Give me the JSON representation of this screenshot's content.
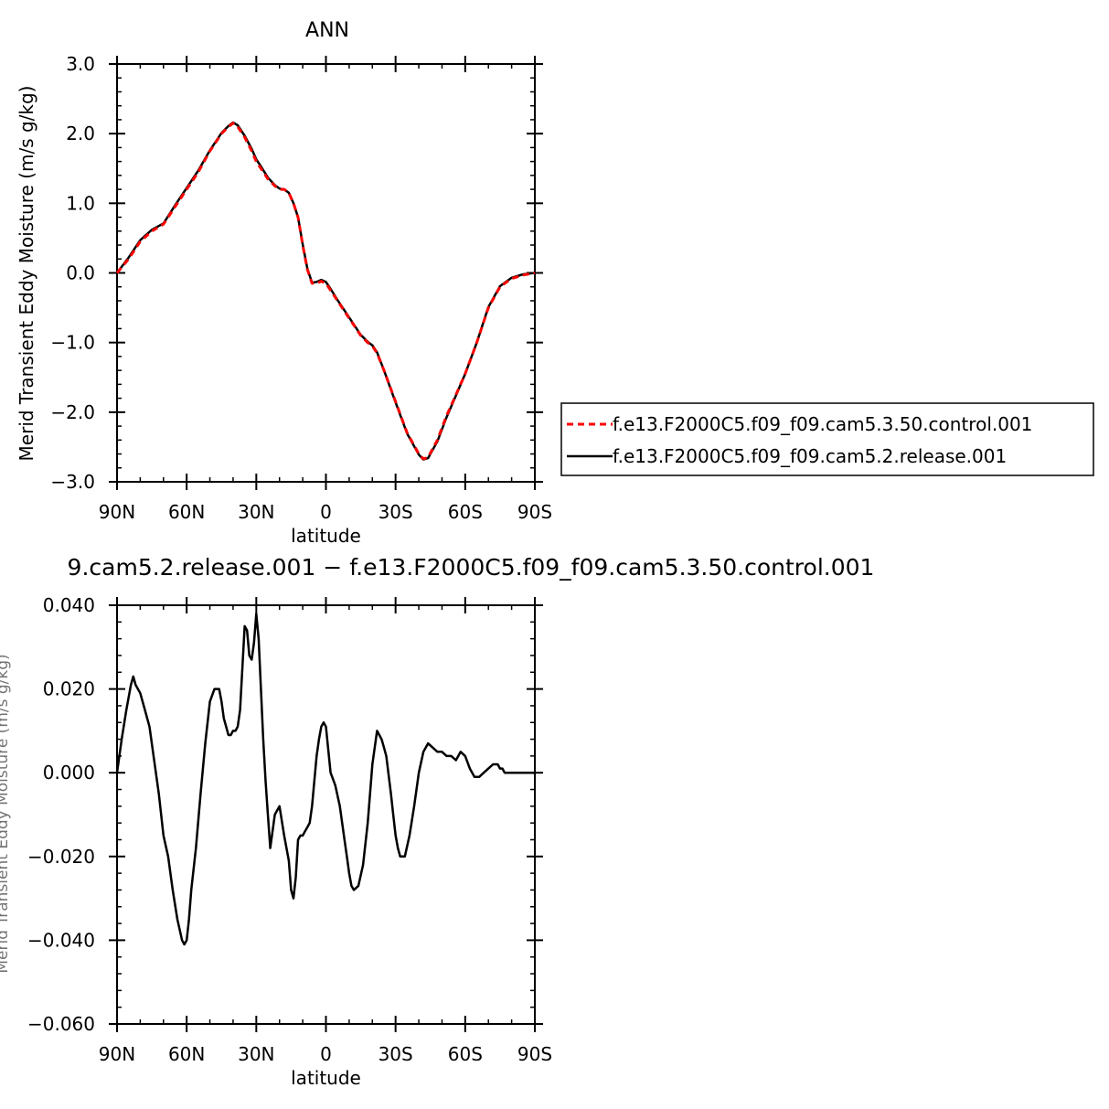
{
  "chart_data": [
    {
      "type": "line",
      "title": "ANN",
      "xlabel": "latitude",
      "ylabel": "Merid Transient Eddy Moisture (m/s g/kg)",
      "xlim": [
        90,
        -90
      ],
      "ylim": [
        -3.0,
        3.0
      ],
      "xticks": [
        90,
        60,
        30,
        0,
        -30,
        -60,
        -90
      ],
      "xtick_labels": [
        "90N",
        "60N",
        "30N",
        "0",
        "30S",
        "60S",
        "90S"
      ],
      "yticks": [
        -3.0,
        -2.0,
        -1.0,
        0.0,
        1.0,
        2.0,
        3.0
      ],
      "ytick_labels": [
        "−3.0",
        "−2.0",
        "−1.0",
        "0.0",
        "1.0",
        "2.0",
        "3.0"
      ],
      "grid": false,
      "legend_position": "right",
      "series": [
        {
          "name": "f.e13.F2000C5.f09_f09.cam5.3.50.control.001",
          "color": "#ff0000",
          "dash": "dashed",
          "x": [
            90,
            85,
            80,
            75,
            70,
            65,
            60,
            55,
            50,
            45,
            42,
            40,
            38,
            35,
            32,
            30,
            28,
            25,
            22,
            20,
            18,
            16,
            14,
            12,
            10,
            8,
            6,
            4,
            2,
            0,
            -2,
            -5,
            -8,
            -10,
            -12,
            -15,
            -18,
            -20,
            -22,
            -25,
            -30,
            -35,
            -40,
            -42,
            -44,
            -48,
            -52,
            -56,
            -60,
            -65,
            -70,
            -75,
            -80,
            -85,
            -90
          ],
          "y": [
            0.0,
            0.2,
            0.45,
            0.6,
            0.7,
            0.95,
            1.2,
            1.45,
            1.75,
            2.0,
            2.1,
            2.15,
            2.1,
            1.95,
            1.75,
            1.6,
            1.5,
            1.35,
            1.25,
            1.2,
            1.2,
            1.15,
            1.0,
            0.8,
            0.4,
            0.05,
            -0.15,
            -0.15,
            -0.12,
            -0.15,
            -0.25,
            -0.4,
            -0.55,
            -0.65,
            -0.75,
            -0.9,
            -1.0,
            -1.05,
            -1.15,
            -1.4,
            -1.85,
            -2.3,
            -2.6,
            -2.67,
            -2.65,
            -2.4,
            -2.05,
            -1.75,
            -1.45,
            -1.0,
            -0.5,
            -0.2,
            -0.08,
            -0.03,
            0.0
          ]
        },
        {
          "name": "f.e13.F2000C5.f09_f09.cam5.2.release.001",
          "color": "#000000",
          "dash": "solid",
          "x": [
            90,
            85,
            80,
            75,
            70,
            65,
            60,
            55,
            50,
            45,
            42,
            40,
            38,
            35,
            32,
            30,
            28,
            25,
            22,
            20,
            18,
            16,
            14,
            12,
            10,
            8,
            6,
            4,
            2,
            0,
            -2,
            -5,
            -8,
            -10,
            -12,
            -15,
            -18,
            -20,
            -22,
            -25,
            -30,
            -35,
            -40,
            -42,
            -44,
            -48,
            -52,
            -56,
            -60,
            -65,
            -70,
            -75,
            -80,
            -85,
            -90
          ],
          "y": [
            0.0,
            0.22,
            0.47,
            0.62,
            0.71,
            0.97,
            1.22,
            1.47,
            1.76,
            2.01,
            2.11,
            2.16,
            2.12,
            1.97,
            1.78,
            1.63,
            1.53,
            1.37,
            1.26,
            1.21,
            1.2,
            1.15,
            1.0,
            0.8,
            0.41,
            0.06,
            -0.14,
            -0.13,
            -0.1,
            -0.13,
            -0.23,
            -0.39,
            -0.54,
            -0.64,
            -0.74,
            -0.89,
            -0.99,
            -1.04,
            -1.14,
            -1.4,
            -1.86,
            -2.31,
            -2.61,
            -2.68,
            -2.66,
            -2.42,
            -2.07,
            -1.76,
            -1.45,
            -1.0,
            -0.49,
            -0.19,
            -0.07,
            -0.02,
            0.0
          ]
        }
      ]
    },
    {
      "type": "line",
      "title": "9.cam5.2.release.001 − f.e13.F2000C5.f09_f09.cam5.3.50.control.001",
      "xlabel": "latitude",
      "ylabel": "Merid Transient Eddy Moisture (m/s g/kg)",
      "xlim": [
        90,
        -90
      ],
      "ylim": [
        -0.06,
        0.04
      ],
      "xticks": [
        90,
        60,
        30,
        0,
        -30,
        -60,
        -90
      ],
      "xtick_labels": [
        "90N",
        "60N",
        "30N",
        "0",
        "30S",
        "60S",
        "90S"
      ],
      "yticks": [
        -0.06,
        -0.04,
        -0.02,
        0.0,
        0.02,
        0.04
      ],
      "ytick_labels": [
        "−0.060",
        "−0.040",
        "−0.020",
        "0.000",
        "0.020",
        "0.040"
      ],
      "grid": false,
      "series": [
        {
          "color": "#000000",
          "dash": "solid",
          "x": [
            90,
            88,
            86,
            84,
            83,
            82,
            80,
            78,
            76,
            74,
            72,
            70,
            68,
            66,
            64,
            62,
            61,
            60,
            59,
            58,
            56,
            54,
            52,
            50,
            48,
            46,
            45,
            44,
            42,
            41,
            40,
            39,
            38,
            37,
            36,
            35,
            34,
            33,
            32,
            31,
            30,
            29,
            28,
            27,
            26,
            25,
            24,
            22,
            20,
            18,
            16,
            15,
            14,
            13,
            12,
            11,
            10,
            9,
            8,
            7,
            6,
            5,
            4,
            3,
            2,
            1,
            0,
            -2,
            -4,
            -6,
            -8,
            -9,
            -10,
            -11,
            -12,
            -14,
            -16,
            -18,
            -20,
            -22,
            -24,
            -25,
            -26,
            -28,
            -29,
            -30,
            -31,
            -32,
            -34,
            -36,
            -38,
            -40,
            -42,
            -44,
            -46,
            -48,
            -50,
            -52,
            -54,
            -56,
            -58,
            -60,
            -62,
            -64,
            -66,
            -68,
            -70,
            -72,
            -74,
            -75,
            -76,
            -77,
            -78,
            -79,
            -80,
            -81,
            -82,
            -83,
            -84,
            -85,
            -86,
            -87,
            -88,
            -89,
            -90
          ],
          "y": [
            0.0,
            0.008,
            0.015,
            0.021,
            0.023,
            0.021,
            0.019,
            0.015,
            0.011,
            0.003,
            -0.005,
            -0.015,
            -0.02,
            -0.028,
            -0.035,
            -0.04,
            -0.041,
            -0.04,
            -0.035,
            -0.028,
            -0.018,
            -0.005,
            0.007,
            0.017,
            0.02,
            0.02,
            0.017,
            0.013,
            0.009,
            0.009,
            0.01,
            0.01,
            0.011,
            0.015,
            0.025,
            0.035,
            0.034,
            0.028,
            0.027,
            0.031,
            0.038,
            0.032,
            0.02,
            0.008,
            -0.002,
            -0.01,
            -0.018,
            -0.01,
            -0.008,
            -0.015,
            -0.021,
            -0.028,
            -0.03,
            -0.025,
            -0.016,
            -0.015,
            -0.015,
            -0.014,
            -0.013,
            -0.012,
            -0.008,
            -0.002,
            0.004,
            0.008,
            0.011,
            0.012,
            0.011,
            0.0,
            -0.003,
            -0.008,
            -0.016,
            -0.02,
            -0.024,
            -0.027,
            -0.028,
            -0.027,
            -0.022,
            -0.012,
            0.002,
            0.01,
            0.008,
            0.006,
            0.004,
            -0.005,
            -0.01,
            -0.015,
            -0.018,
            -0.02,
            -0.02,
            -0.015,
            -0.008,
            0.0,
            0.005,
            0.007,
            0.006,
            0.005,
            0.005,
            0.004,
            0.004,
            0.003,
            0.005,
            0.004,
            0.001,
            -0.001,
            -0.001,
            0.0,
            0.001,
            0.002,
            0.002,
            0.001,
            0.001,
            0.0,
            0.0,
            0.0,
            0.0,
            0.0,
            0.0,
            0.0,
            0.0,
            0.0,
            0.0,
            0.0,
            0.0,
            0.0,
            0.0
          ]
        }
      ]
    }
  ]
}
